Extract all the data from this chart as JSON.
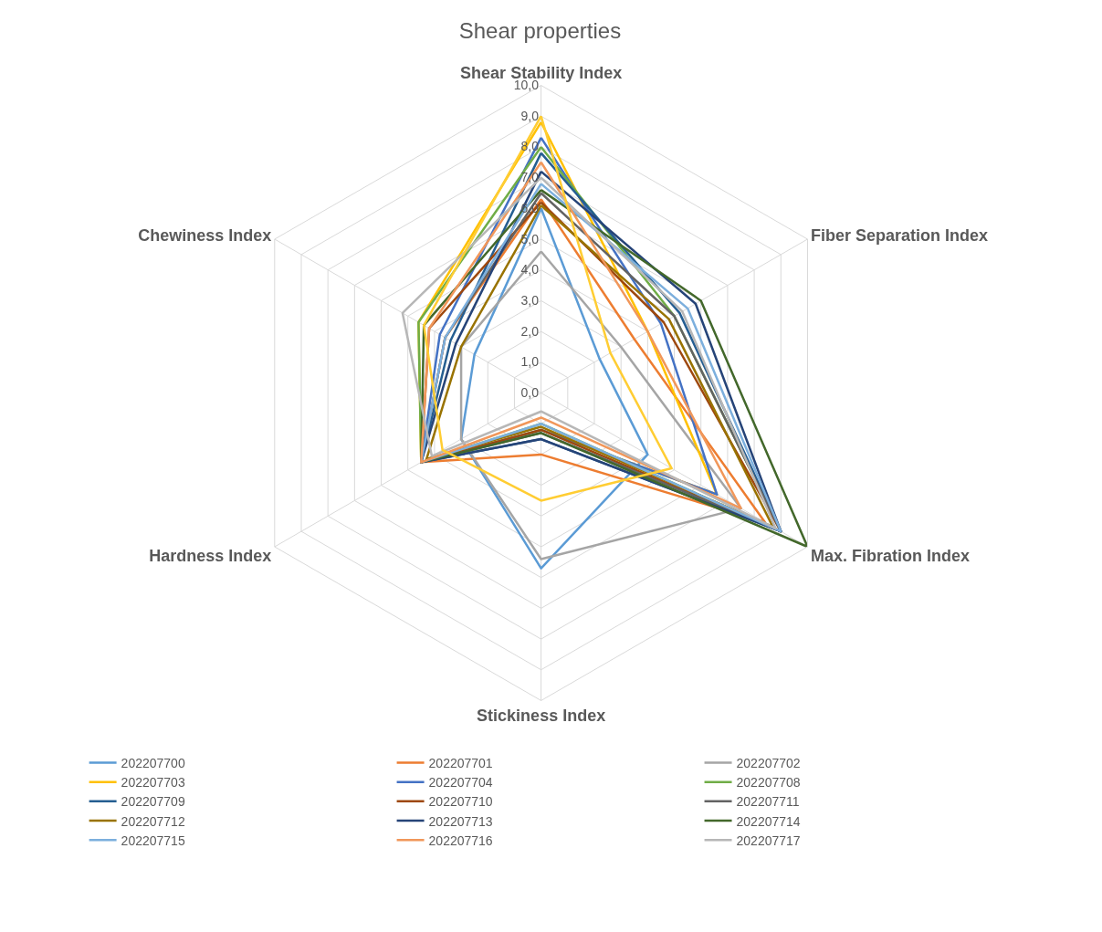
{
  "chart_data": {
    "type": "radar",
    "title": "Shear properties",
    "categories": [
      "Shear Stability Index",
      "Fiber Separation Index",
      "Max. Fibration Index",
      "Stickiness Index",
      "Hardness Index",
      "Chewiness Index"
    ],
    "ylim": [
      0,
      10
    ],
    "yticks": [
      {
        "value": 0,
        "label": "0,0"
      },
      {
        "value": 1,
        "label": "1,0"
      },
      {
        "value": 2,
        "label": "2,0"
      },
      {
        "value": 3,
        "label": "3,0"
      },
      {
        "value": 4,
        "label": "4,0"
      },
      {
        "value": 5,
        "label": "5,0"
      },
      {
        "value": 6,
        "label": "6,0"
      },
      {
        "value": 7,
        "label": "7,0"
      },
      {
        "value": 8,
        "label": "8,0"
      },
      {
        "value": 9,
        "label": "9,0"
      },
      {
        "value": 10,
        "label": "10,0"
      }
    ],
    "grid": true,
    "legend": "bottom",
    "marker": "none",
    "line_style": "solid",
    "series": [
      {
        "name": "202207700",
        "color": "#5b9bd5",
        "values": [
          6.0,
          2.2,
          4.0,
          5.7,
          3.0,
          2.5
        ]
      },
      {
        "name": "202207701",
        "color": "#ed7d31",
        "values": [
          6.3,
          3.5,
          8.4,
          2.0,
          4.5,
          3.6
        ]
      },
      {
        "name": "202207702",
        "color": "#a5a5a5",
        "values": [
          4.6,
          3.0,
          7.5,
          5.4,
          3.0,
          3.0
        ]
      },
      {
        "name": "202207703",
        "color": "#ffc000",
        "values": [
          8.8,
          4.0,
          6.6,
          1.2,
          4.5,
          4.6
        ]
      },
      {
        "name": "202207704",
        "color": "#4472c4",
        "values": [
          8.3,
          4.5,
          6.6,
          1.2,
          4.5,
          3.8
        ]
      },
      {
        "name": "202207708",
        "color": "#70ad47",
        "values": [
          8.0,
          5.0,
          9.0,
          1.0,
          4.5,
          4.6
        ]
      },
      {
        "name": "202207709",
        "color": "#255e91",
        "values": [
          7.8,
          5.2,
          9.0,
          1.5,
          4.5,
          3.4
        ]
      },
      {
        "name": "202207710",
        "color": "#9e480e",
        "values": [
          6.2,
          4.6,
          9.0,
          1.2,
          4.5,
          4.2
        ]
      },
      {
        "name": "202207711",
        "color": "#636363",
        "values": [
          6.5,
          5.0,
          9.0,
          1.3,
          4.5,
          3.6
        ]
      },
      {
        "name": "202207712",
        "color": "#997300",
        "values": [
          6.1,
          4.8,
          8.7,
          1.1,
          4.3,
          3.0
        ]
      },
      {
        "name": "202207713",
        "color": "#264478",
        "values": [
          7.2,
          5.8,
          9.0,
          1.5,
          4.5,
          3.2
        ]
      },
      {
        "name": "202207714",
        "color": "#43682b",
        "values": [
          6.6,
          6.0,
          10.0,
          1.3,
          4.5,
          4.4
        ]
      },
      {
        "name": "202207715",
        "color": "#7cafdd",
        "values": [
          6.8,
          5.5,
          9.0,
          1.0,
          4.5,
          3.6
        ]
      },
      {
        "name": "202207716",
        "color": "#f1975a",
        "values": [
          7.5,
          4.0,
          7.5,
          0.8,
          4.5,
          4.2
        ]
      },
      {
        "name": "202207717",
        "color": "#b7b7b7",
        "values": [
          7.0,
          5.3,
          8.8,
          0.6,
          4.1,
          5.2
        ]
      },
      {
        "color": "#ffcd33",
        "values": [
          9.0,
          2.6,
          4.9,
          3.5,
          3.7,
          4.4
        ]
      }
    ]
  }
}
